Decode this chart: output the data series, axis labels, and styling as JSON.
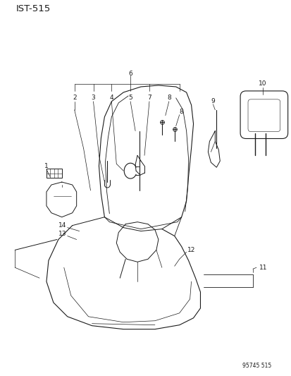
{
  "title": "IST-515",
  "watermark": "95745 515",
  "bg_color": "#ffffff",
  "line_color": "#1a1a1a",
  "figsize": [
    4.14,
    5.33
  ],
  "dpi": 100
}
